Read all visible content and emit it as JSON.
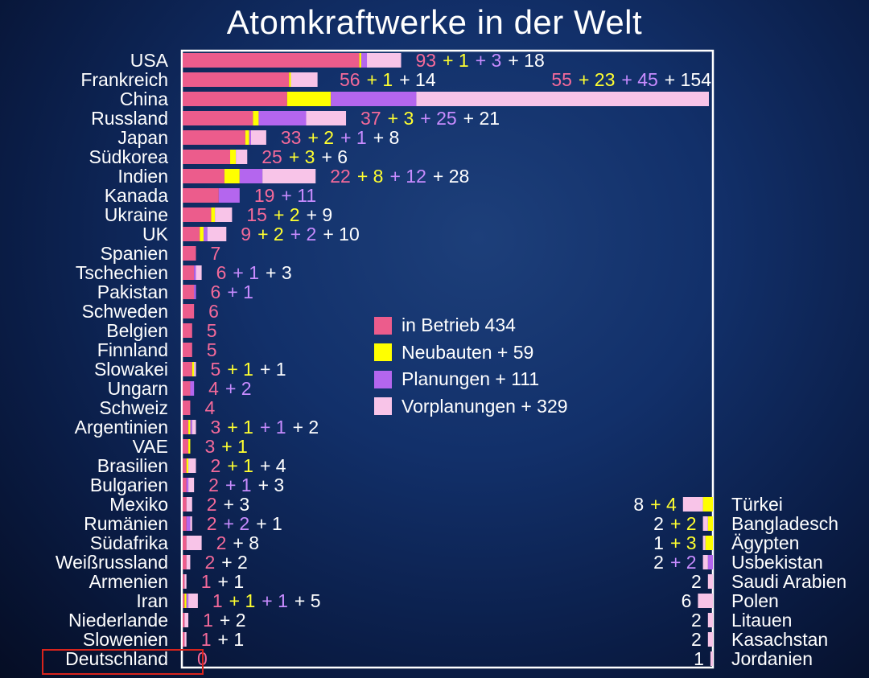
{
  "title": "Atomkraftwerke in der Welt",
  "colors": {
    "betrieb": "#ec5c8c",
    "neubauten": "#ffff00",
    "planungen": "#b466ee",
    "vorplanungen": "#f8c4e8",
    "label_betrieb": "#f46a9a",
    "label_neubauten": "#ffff30",
    "label_planungen": "#c88cff",
    "label_vorplanungen": "#ffffff",
    "frame": "#ffffff",
    "highlight": "#d8241c"
  },
  "legend": [
    {
      "key": "betrieb",
      "label": "in Betrieb 434"
    },
    {
      "key": "neubauten",
      "label": "Neubauten + 59"
    },
    {
      "key": "planungen",
      "label": "Planungen + 111"
    },
    {
      "key": "vorplanungen",
      "label": "Vorplanungen + 329"
    }
  ],
  "chart_data": {
    "type": "bar",
    "orientation": "horizontal",
    "stacked": true,
    "title": "Atomkraftwerke in der Welt",
    "series_keys": [
      "betrieb",
      "neubauten",
      "planungen",
      "vorplanungen"
    ],
    "series_names": [
      "in Betrieb",
      "Neubauten",
      "Planungen",
      "Vorplanungen"
    ],
    "series_totals": [
      434,
      59,
      111,
      329
    ],
    "left_countries": [
      {
        "name": "USA",
        "values": [
          93,
          1,
          3,
          18
        ],
        "label": [
          "93",
          "+ 1",
          "+ 3",
          "+ 18"
        ]
      },
      {
        "name": "Frankreich",
        "values": [
          56,
          1,
          0,
          14
        ],
        "label": [
          "56",
          "+ 1",
          "",
          "+ 14"
        ]
      },
      {
        "name": "China",
        "values": [
          55,
          23,
          45,
          154
        ],
        "label": [
          "55",
          "+ 23",
          "+ 45",
          "+ 154"
        ]
      },
      {
        "name": "Russland",
        "values": [
          37,
          3,
          25,
          21
        ],
        "label": [
          "37",
          "+ 3",
          "+ 25",
          "+ 21"
        ]
      },
      {
        "name": "Japan",
        "values": [
          33,
          2,
          1,
          8
        ],
        "label": [
          "33",
          "+ 2",
          "+ 1",
          "+ 8"
        ]
      },
      {
        "name": "Südkorea",
        "values": [
          25,
          3,
          0,
          6
        ],
        "label": [
          "25",
          "+ 3",
          "",
          "+ 6"
        ]
      },
      {
        "name": "Indien",
        "values": [
          22,
          8,
          12,
          28
        ],
        "label": [
          "22",
          "+ 8",
          "+ 12",
          "+ 28"
        ]
      },
      {
        "name": "Kanada",
        "values": [
          19,
          0,
          11,
          0
        ],
        "label": [
          "19",
          "",
          "+ 11",
          ""
        ]
      },
      {
        "name": "Ukraine",
        "values": [
          15,
          2,
          0,
          9
        ],
        "label": [
          "15",
          "+ 2",
          "",
          "+ 9"
        ]
      },
      {
        "name": "UK",
        "values": [
          9,
          2,
          2,
          10
        ],
        "label": [
          "9",
          "+ 2",
          "+ 2",
          "+ 10"
        ]
      },
      {
        "name": "Spanien",
        "values": [
          7,
          0,
          0,
          0
        ],
        "label": [
          "7",
          "",
          "",
          ""
        ]
      },
      {
        "name": "Tschechien",
        "values": [
          6,
          0,
          1,
          3
        ],
        "label": [
          "6",
          "",
          "+ 1",
          "+ 3"
        ]
      },
      {
        "name": "Pakistan",
        "values": [
          6,
          0,
          1,
          0
        ],
        "label": [
          "6",
          "",
          "+ 1",
          ""
        ]
      },
      {
        "name": "Schweden",
        "values": [
          6,
          0,
          0,
          0
        ],
        "label": [
          "6",
          "",
          "",
          ""
        ]
      },
      {
        "name": "Belgien",
        "values": [
          5,
          0,
          0,
          0
        ],
        "label": [
          "5",
          "",
          "",
          ""
        ]
      },
      {
        "name": "Finnland",
        "values": [
          5,
          0,
          0,
          0
        ],
        "label": [
          "5",
          "",
          "",
          ""
        ]
      },
      {
        "name": "Slowakei",
        "values": [
          5,
          1,
          0,
          1
        ],
        "label": [
          "5",
          "+ 1",
          "",
          "+ 1"
        ]
      },
      {
        "name": "Ungarn",
        "values": [
          4,
          0,
          2,
          0
        ],
        "label": [
          "4",
          "",
          "+ 2",
          ""
        ]
      },
      {
        "name": "Schweiz",
        "values": [
          4,
          0,
          0,
          0
        ],
        "label": [
          "4",
          "",
          "",
          ""
        ]
      },
      {
        "name": "Argentinien",
        "values": [
          3,
          1,
          1,
          2
        ],
        "label": [
          "3",
          "+ 1",
          "+ 1",
          "+ 2"
        ]
      },
      {
        "name": "VAE",
        "values": [
          3,
          1,
          0,
          0
        ],
        "label": [
          "3",
          "+ 1",
          "",
          ""
        ]
      },
      {
        "name": "Brasilien",
        "values": [
          2,
          1,
          0,
          4
        ],
        "label": [
          "2",
          "+ 1",
          "",
          "+ 4"
        ]
      },
      {
        "name": "Bulgarien",
        "values": [
          2,
          0,
          1,
          3
        ],
        "label": [
          "2",
          "",
          "+ 1",
          "+ 3"
        ]
      },
      {
        "name": "Mexiko",
        "values": [
          2,
          0,
          0,
          3
        ],
        "label": [
          "2",
          "",
          "",
          "+ 3"
        ]
      },
      {
        "name": "Rumänien",
        "values": [
          2,
          0,
          2,
          1
        ],
        "label": [
          "2",
          "",
          "+ 2",
          "+ 1"
        ]
      },
      {
        "name": "Südafrika",
        "values": [
          2,
          0,
          0,
          8
        ],
        "label": [
          "2",
          "",
          "",
          "+ 8"
        ]
      },
      {
        "name": "Weißrussland",
        "values": [
          2,
          0,
          0,
          2
        ],
        "label": [
          "2",
          "",
          "",
          "+ 2"
        ]
      },
      {
        "name": "Armenien",
        "values": [
          1,
          0,
          0,
          1
        ],
        "label": [
          "1",
          "",
          "",
          "+ 1"
        ]
      },
      {
        "name": "Iran",
        "values": [
          1,
          1,
          1,
          5
        ],
        "label": [
          "1",
          "+ 1",
          "+ 1",
          "+ 5"
        ]
      },
      {
        "name": "Niederlande",
        "values": [
          1,
          0,
          0,
          2
        ],
        "label": [
          "1",
          "",
          "",
          "+ 2"
        ]
      },
      {
        "name": "Slowenien",
        "values": [
          1,
          0,
          0,
          1
        ],
        "label": [
          "1",
          "",
          "",
          "+ 1"
        ]
      },
      {
        "name": "Deutschland",
        "values": [
          0,
          0,
          0,
          0
        ],
        "label": [
          "0",
          "",
          "",
          ""
        ],
        "highlight": true
      }
    ],
    "right_countries": [
      {
        "name": "Türkei",
        "values": [
          0,
          4,
          0,
          8
        ],
        "label": [
          "",
          "+ 4",
          "",
          "8"
        ]
      },
      {
        "name": "Bangladesch",
        "values": [
          0,
          2,
          0,
          2
        ],
        "label": [
          "",
          "+ 2",
          "",
          "2"
        ]
      },
      {
        "name": "Ägypten",
        "values": [
          0,
          3,
          0,
          1
        ],
        "label": [
          "",
          "+ 3",
          "",
          "1"
        ]
      },
      {
        "name": "Usbekistan",
        "values": [
          0,
          0,
          2,
          2
        ],
        "label": [
          "",
          "",
          "+ 2",
          "2"
        ]
      },
      {
        "name": "Saudi Arabien",
        "values": [
          0,
          0,
          0,
          2
        ],
        "label": [
          "",
          "",
          "",
          "2"
        ]
      },
      {
        "name": "Polen",
        "values": [
          0,
          0,
          0,
          6
        ],
        "label": [
          "",
          "",
          "",
          "6"
        ]
      },
      {
        "name": "Litauen",
        "values": [
          0,
          0,
          0,
          2
        ],
        "label": [
          "",
          "",
          "",
          "2"
        ]
      },
      {
        "name": "Kasachstan",
        "values": [
          0,
          0,
          0,
          2
        ],
        "label": [
          "",
          "",
          "",
          "2"
        ]
      },
      {
        "name": "Jordanien",
        "values": [
          0,
          0,
          0,
          1
        ],
        "label": [
          "",
          "",
          "",
          "1"
        ]
      }
    ]
  }
}
